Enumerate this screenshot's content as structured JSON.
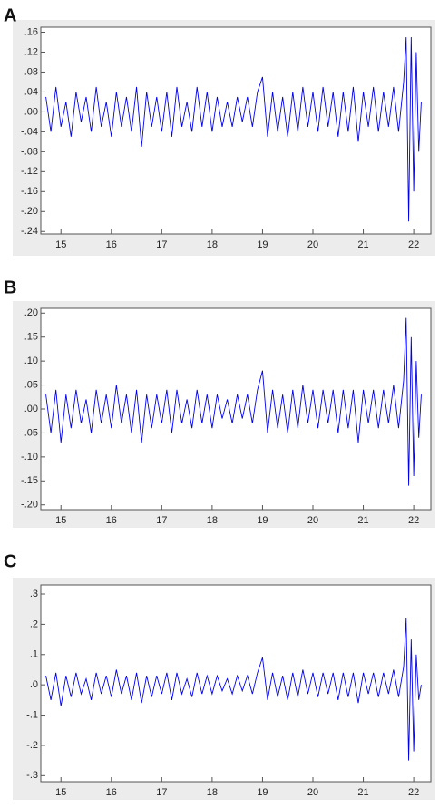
{
  "chart_data": [
    {
      "type": "line",
      "title": "A",
      "x": [
        14.7,
        14.8,
        14.9,
        15.0,
        15.1,
        15.2,
        15.3,
        15.4,
        15.5,
        15.6,
        15.7,
        15.8,
        15.9,
        16.0,
        16.1,
        16.2,
        16.3,
        16.4,
        16.5,
        16.6,
        16.7,
        16.8,
        16.9,
        17.0,
        17.1,
        17.2,
        17.3,
        17.4,
        17.5,
        17.6,
        17.7,
        17.8,
        17.9,
        18.0,
        18.1,
        18.2,
        18.3,
        18.4,
        18.5,
        18.6,
        18.7,
        18.8,
        18.9,
        19.0,
        19.1,
        19.2,
        19.3,
        19.4,
        19.5,
        19.6,
        19.7,
        19.8,
        19.9,
        20.0,
        20.1,
        20.2,
        20.3,
        20.4,
        20.5,
        20.6,
        20.7,
        20.8,
        20.9,
        21.0,
        21.1,
        21.2,
        21.3,
        21.4,
        21.5,
        21.6,
        21.7,
        21.8,
        21.85,
        21.9,
        21.95,
        22.0,
        22.05,
        22.1,
        22.15
      ],
      "series": [
        {
          "color": "#0000ee",
          "values": [
            0.03,
            -0.04,
            0.05,
            -0.03,
            0.02,
            -0.05,
            0.04,
            -0.02,
            0.03,
            -0.04,
            0.05,
            -0.03,
            0.02,
            -0.05,
            0.04,
            -0.03,
            0.03,
            -0.04,
            0.05,
            -0.07,
            0.04,
            -0.03,
            0.03,
            -0.04,
            0.04,
            -0.05,
            0.05,
            -0.03,
            0.02,
            -0.04,
            0.05,
            -0.03,
            0.04,
            -0.04,
            0.03,
            -0.03,
            0.02,
            -0.03,
            0.03,
            -0.02,
            0.03,
            -0.03,
            0.04,
            0.07,
            -0.05,
            0.04,
            -0.04,
            0.03,
            -0.05,
            0.04,
            -0.04,
            0.05,
            -0.03,
            0.04,
            -0.04,
            0.05,
            -0.03,
            0.04,
            -0.05,
            0.04,
            -0.04,
            0.05,
            -0.06,
            0.04,
            -0.03,
            0.05,
            -0.04,
            0.04,
            -0.03,
            0.05,
            -0.04,
            0.06,
            0.15,
            -0.22,
            0.15,
            -0.16,
            0.12,
            -0.08,
            0.02
          ]
        }
      ],
      "xlim": [
        14.6,
        22.34
      ],
      "xticks": [
        15,
        16,
        17,
        18,
        19,
        20,
        21,
        22
      ],
      "ylim": [
        -0.245,
        0.17
      ],
      "yticks": [
        {
          "value": 0.16,
          "label": ".16"
        },
        {
          "value": 0.12,
          "label": ".12"
        },
        {
          "value": 0.08,
          "label": ".08"
        },
        {
          "value": 0.04,
          "label": ".04"
        },
        {
          "value": 0,
          "label": ".00"
        },
        {
          "value": -0.04,
          "label": "-.04"
        },
        {
          "value": -0.08,
          "label": "-.08"
        },
        {
          "value": -0.12,
          "label": "-.12"
        },
        {
          "value": -0.16,
          "label": "-.16"
        },
        {
          "value": -0.2,
          "label": "-.20"
        },
        {
          "value": -0.24,
          "label": "-.24"
        }
      ]
    },
    {
      "type": "line",
      "title": "B",
      "x": [
        14.7,
        14.8,
        14.9,
        15.0,
        15.1,
        15.2,
        15.3,
        15.4,
        15.5,
        15.6,
        15.7,
        15.8,
        15.9,
        16.0,
        16.1,
        16.2,
        16.3,
        16.4,
        16.5,
        16.6,
        16.7,
        16.8,
        16.9,
        17.0,
        17.1,
        17.2,
        17.3,
        17.4,
        17.5,
        17.6,
        17.7,
        17.8,
        17.9,
        18.0,
        18.1,
        18.2,
        18.3,
        18.4,
        18.5,
        18.6,
        18.7,
        18.8,
        18.9,
        19.0,
        19.1,
        19.2,
        19.3,
        19.4,
        19.5,
        19.6,
        19.7,
        19.8,
        19.9,
        20.0,
        20.1,
        20.2,
        20.3,
        20.4,
        20.5,
        20.6,
        20.7,
        20.8,
        20.9,
        21.0,
        21.1,
        21.2,
        21.3,
        21.4,
        21.5,
        21.6,
        21.7,
        21.8,
        21.85,
        21.9,
        21.95,
        22.0,
        22.05,
        22.1,
        22.15
      ],
      "series": [
        {
          "color": "#0000ee",
          "values": [
            0.03,
            -0.05,
            0.04,
            -0.07,
            0.03,
            -0.04,
            0.04,
            -0.03,
            0.02,
            -0.05,
            0.04,
            -0.03,
            0.03,
            -0.04,
            0.05,
            -0.03,
            0.03,
            -0.05,
            0.04,
            -0.07,
            0.03,
            -0.04,
            0.03,
            -0.03,
            0.04,
            -0.05,
            0.04,
            -0.03,
            0.02,
            -0.04,
            0.04,
            -0.03,
            0.03,
            -0.04,
            0.03,
            -0.02,
            0.02,
            -0.03,
            0.03,
            -0.02,
            0.03,
            -0.03,
            0.04,
            0.08,
            -0.05,
            0.04,
            -0.04,
            0.03,
            -0.05,
            0.04,
            -0.04,
            0.05,
            -0.03,
            0.04,
            -0.04,
            0.04,
            -0.03,
            0.04,
            -0.05,
            0.04,
            -0.04,
            0.04,
            -0.07,
            0.04,
            -0.03,
            0.04,
            -0.04,
            0.04,
            -0.03,
            0.05,
            -0.04,
            0.06,
            0.19,
            -0.16,
            0.15,
            -0.14,
            0.1,
            -0.06,
            0.03
          ]
        }
      ],
      "xlim": [
        14.6,
        22.34
      ],
      "xticks": [
        15,
        16,
        17,
        18,
        19,
        20,
        21,
        22
      ],
      "ylim": [
        -0.21,
        0.21
      ],
      "yticks": [
        {
          "value": 0.2,
          "label": ".20"
        },
        {
          "value": 0.15,
          "label": ".15"
        },
        {
          "value": 0.1,
          "label": ".10"
        },
        {
          "value": 0.05,
          "label": ".05"
        },
        {
          "value": 0,
          "label": ".00"
        },
        {
          "value": -0.05,
          "label": "-.05"
        },
        {
          "value": -0.1,
          "label": "-.10"
        },
        {
          "value": -0.15,
          "label": "-.15"
        },
        {
          "value": -0.2,
          "label": "-.20"
        }
      ]
    },
    {
      "type": "line",
      "title": "C",
      "x": [
        14.7,
        14.8,
        14.9,
        15.0,
        15.1,
        15.2,
        15.3,
        15.4,
        15.5,
        15.6,
        15.7,
        15.8,
        15.9,
        16.0,
        16.1,
        16.2,
        16.3,
        16.4,
        16.5,
        16.6,
        16.7,
        16.8,
        16.9,
        17.0,
        17.1,
        17.2,
        17.3,
        17.4,
        17.5,
        17.6,
        17.7,
        17.8,
        17.9,
        18.0,
        18.1,
        18.2,
        18.3,
        18.4,
        18.5,
        18.6,
        18.7,
        18.8,
        18.9,
        19.0,
        19.1,
        19.2,
        19.3,
        19.4,
        19.5,
        19.6,
        19.7,
        19.8,
        19.9,
        20.0,
        20.1,
        20.2,
        20.3,
        20.4,
        20.5,
        20.6,
        20.7,
        20.8,
        20.9,
        21.0,
        21.1,
        21.2,
        21.3,
        21.4,
        21.5,
        21.6,
        21.7,
        21.8,
        21.85,
        21.9,
        21.95,
        22.0,
        22.05,
        22.1,
        22.15
      ],
      "series": [
        {
          "color": "#0000ee",
          "values": [
            0.03,
            -0.05,
            0.04,
            -0.07,
            0.03,
            -0.04,
            0.04,
            -0.03,
            0.02,
            -0.05,
            0.04,
            -0.03,
            0.03,
            -0.04,
            0.05,
            -0.03,
            0.03,
            -0.05,
            0.04,
            -0.06,
            0.03,
            -0.04,
            0.03,
            -0.03,
            0.04,
            -0.05,
            0.04,
            -0.03,
            0.02,
            -0.04,
            0.04,
            -0.03,
            0.03,
            -0.03,
            0.03,
            -0.02,
            0.02,
            -0.03,
            0.03,
            -0.02,
            0.03,
            -0.03,
            0.04,
            0.09,
            -0.05,
            0.04,
            -0.04,
            0.03,
            -0.05,
            0.04,
            -0.04,
            0.05,
            -0.03,
            0.04,
            -0.04,
            0.04,
            -0.03,
            0.04,
            -0.05,
            0.04,
            -0.04,
            0.04,
            -0.06,
            0.04,
            -0.03,
            0.04,
            -0.04,
            0.04,
            -0.03,
            0.05,
            -0.04,
            0.06,
            0.22,
            -0.25,
            0.15,
            -0.22,
            0.1,
            -0.05,
            0.0
          ]
        }
      ],
      "xlim": [
        14.6,
        22.34
      ],
      "xticks": [
        15,
        16,
        17,
        18,
        19,
        20,
        21,
        22
      ],
      "ylim": [
        -0.32,
        0.33
      ],
      "yticks": [
        {
          "value": 0.3,
          "label": ".3"
        },
        {
          "value": 0.2,
          "label": ".2"
        },
        {
          "value": 0.1,
          "label": ".1"
        },
        {
          "value": 0,
          "label": ".0"
        },
        {
          "value": -0.1,
          "label": "-.1"
        },
        {
          "value": -0.2,
          "label": "-.2"
        },
        {
          "value": -0.3,
          "label": "-.3"
        }
      ]
    }
  ]
}
